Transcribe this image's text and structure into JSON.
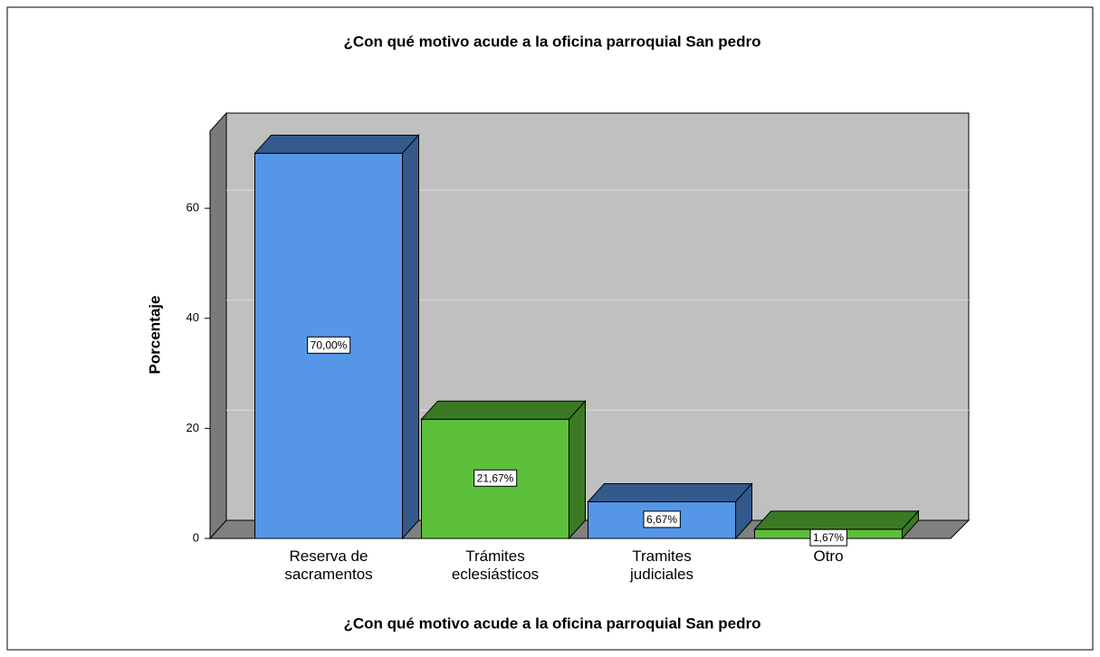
{
  "chart_data": {
    "type": "bar3d",
    "title": "¿Con qué motivo acude a la oficina parroquial San pedro",
    "x_label": "¿Con qué motivo acude a la oficina parroquial San pedro",
    "y_label": "Porcentaje",
    "categories": [
      [
        "Reserva de",
        "sacramentos"
      ],
      [
        "Trámites",
        "eclesiásticos"
      ],
      [
        "Tramites",
        "judiciales"
      ],
      [
        "Otro"
      ]
    ],
    "values": [
      70,
      21.67,
      6.67,
      1.67
    ],
    "value_labels": [
      "70,00%",
      "21,67%",
      "6,67%",
      "1,67%"
    ],
    "colors": [
      "#5596e6",
      "#5cbf3a",
      "#5596e6",
      "#5cbf3a"
    ],
    "shade_colors": [
      "#345a8c",
      "#3a7a24",
      "#345a8c",
      "#3a7a24"
    ],
    "ylim": [
      0,
      74
    ],
    "yticks": [
      0,
      20,
      40,
      60
    ],
    "grid": true
  }
}
